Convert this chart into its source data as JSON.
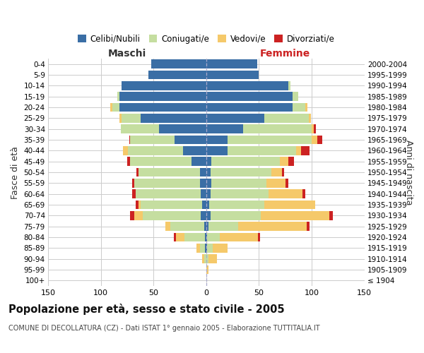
{
  "age_groups": [
    "100+",
    "95-99",
    "90-94",
    "85-89",
    "80-84",
    "75-79",
    "70-74",
    "65-69",
    "60-64",
    "55-59",
    "50-54",
    "45-49",
    "40-44",
    "35-39",
    "30-34",
    "25-29",
    "20-24",
    "15-19",
    "10-14",
    "5-9",
    "0-4"
  ],
  "birth_years": [
    "≤ 1904",
    "1905-1909",
    "1910-1914",
    "1915-1919",
    "1920-1924",
    "1925-1929",
    "1930-1934",
    "1935-1939",
    "1940-1944",
    "1945-1949",
    "1950-1954",
    "1955-1959",
    "1960-1964",
    "1965-1969",
    "1970-1974",
    "1975-1979",
    "1980-1984",
    "1985-1989",
    "1990-1994",
    "1995-1999",
    "2000-2004"
  ],
  "males_celibi": [
    0,
    0,
    0,
    1,
    1,
    2,
    5,
    4,
    5,
    6,
    6,
    14,
    22,
    30,
    45,
    62,
    82,
    82,
    80,
    55,
    52
  ],
  "males_coniugati": [
    0,
    0,
    2,
    5,
    20,
    32,
    55,
    58,
    62,
    62,
    58,
    58,
    52,
    42,
    36,
    18,
    7,
    2,
    0,
    0,
    0
  ],
  "males_vedovi": [
    0,
    0,
    2,
    3,
    8,
    5,
    8,
    2,
    0,
    0,
    0,
    0,
    5,
    0,
    0,
    2,
    2,
    0,
    0,
    0,
    0
  ],
  "males_divorziati": [
    0,
    0,
    0,
    0,
    2,
    0,
    4,
    3,
    3,
    2,
    2,
    3,
    0,
    1,
    0,
    0,
    0,
    0,
    0,
    0,
    0
  ],
  "females_nubili": [
    0,
    0,
    0,
    1,
    1,
    2,
    4,
    3,
    4,
    5,
    4,
    5,
    20,
    20,
    35,
    55,
    82,
    82,
    78,
    50,
    48
  ],
  "females_coniugate": [
    0,
    0,
    2,
    5,
    12,
    28,
    48,
    52,
    55,
    52,
    58,
    65,
    65,
    80,
    65,
    42,
    12,
    5,
    2,
    0,
    0
  ],
  "females_vedove": [
    0,
    2,
    8,
    14,
    36,
    65,
    65,
    48,
    32,
    18,
    10,
    8,
    5,
    5,
    2,
    2,
    2,
    0,
    0,
    0,
    0
  ],
  "females_divorziate": [
    0,
    0,
    0,
    0,
    2,
    3,
    3,
    0,
    3,
    3,
    2,
    5,
    8,
    5,
    2,
    0,
    0,
    0,
    0,
    0,
    0
  ],
  "color_celibi": "#3a6ea5",
  "color_coniugati": "#c5dea0",
  "color_vedovi": "#f5c96a",
  "color_divorziati": "#cc2222",
  "title": "Popolazione per età, sesso e stato civile - 2005",
  "subtitle": "COMUNE DI DECOLLATURA (CZ) - Dati ISTAT 1° gennaio 2005 - Elaborazione TUTTITALIA.IT",
  "label_maschi": "Maschi",
  "label_femmine": "Femmine",
  "label_fasce": "Fasce di età",
  "label_anni": "Anni di nascita",
  "legend_labels": [
    "Celibi/Nubili",
    "Coniugati/e",
    "Vedovi/e",
    "Divorziati/e"
  ],
  "xlim": 150,
  "bg_color": "#ffffff",
  "grid_color": "#cccccc"
}
